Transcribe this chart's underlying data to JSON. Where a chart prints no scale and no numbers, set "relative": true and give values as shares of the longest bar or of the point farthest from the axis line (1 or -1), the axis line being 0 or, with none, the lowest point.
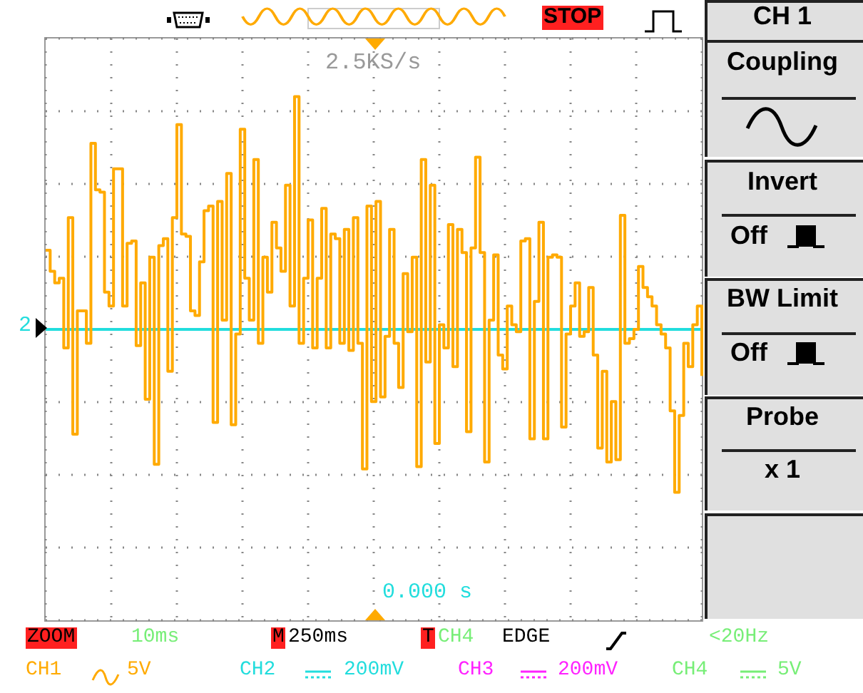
{
  "chart_data": {
    "type": "step",
    "relative": true,
    "tick_labels": false,
    "grid": true,
    "marker": "none",
    "line_style": "solid",
    "categories": [
      null,
      null,
      null,
      null,
      null,
      null,
      null,
      null,
      null,
      null,
      null,
      null,
      null,
      null,
      null,
      null,
      null,
      null,
      null,
      null,
      null,
      null,
      null,
      null,
      null,
      null,
      null,
      null,
      null,
      null,
      null,
      null,
      null,
      null,
      null,
      null,
      null,
      null,
      null,
      null,
      null,
      null,
      null,
      null,
      null,
      null,
      null,
      null,
      null,
      null,
      null,
      null,
      null,
      null,
      null,
      null,
      null,
      null,
      null,
      null,
      null,
      null,
      null,
      null,
      null,
      null,
      null,
      null,
      null,
      null,
      null,
      null,
      null,
      null,
      null,
      null,
      null,
      null,
      null,
      null,
      null,
      null,
      null,
      null,
      null,
      null,
      null,
      null,
      null,
      null,
      null,
      null,
      null,
      null,
      null,
      null,
      null,
      null,
      null,
      null,
      null,
      null,
      null,
      null,
      null,
      null,
      null,
      null,
      null,
      null,
      null,
      null,
      null,
      null,
      null,
      null,
      null,
      null,
      null,
      null,
      null,
      null,
      null,
      null,
      null,
      null,
      null,
      null,
      null,
      null,
      null,
      null,
      null,
      null,
      null,
      null,
      null,
      null,
      null,
      null,
      null,
      null,
      null,
      null,
      null,
      null
    ],
    "series": [
      {
        "color": "#ffaa00",
        "values": [
          0.34,
          0.25,
          0.2,
          0.22,
          -0.08,
          0.48,
          -0.45,
          0.08,
          0.08,
          -0.06,
          0.8,
          0.6,
          0.59,
          0.16,
          0.1,
          0.69,
          0.69,
          0.1,
          0.37,
          0.38,
          -0.07,
          0.2,
          -0.3,
          0.31,
          -0.58,
          0.36,
          0.39,
          -0.18,
          0.48,
          0.88,
          0.41,
          0.4,
          0.08,
          0.06,
          0.29,
          0.51,
          0.53,
          -0.4,
          0.55,
          0.04,
          0.67,
          -0.41,
          -0.02,
          0.86,
          0.22,
          0.04,
          0.73,
          -0.06,
          0.31,
          0.16,
          0.46,
          0.35,
          0.25,
          0.62,
          0.1,
          1.0,
          -0.06,
          0.22,
          0.47,
          -0.08,
          0.22,
          0.52,
          -0.08,
          0.41,
          0.39,
          -0.06,
          0.43,
          -0.09,
          0.48,
          -0.06,
          -0.6,
          0.53,
          -0.31,
          0.55,
          -0.29,
          -0.03,
          0.43,
          -0.06,
          -0.25,
          0.24,
          -0.01,
          0.31,
          -0.59,
          0.73,
          -0.14,
          0.62,
          -0.49,
          0.02,
          -0.08,
          0.45,
          -0.16,
          0.43,
          0.33,
          -0.44,
          0.35,
          0.74,
          0.33,
          -0.57,
          0.04,
          0.32,
          -0.11,
          -0.17,
          0.1,
          0.02,
          -0.01,
          0.38,
          0.39,
          -0.47,
          0.12,
          0.46,
          -0.47,
          0.31,
          0.32,
          0.31,
          -0.42,
          -0.02,
          0.1,
          0.2,
          -0.03,
          -0.01,
          0.18,
          -0.11,
          -0.51,
          -0.18,
          -0.57,
          -0.31,
          -0.56,
          0.49,
          -0.06,
          -0.04,
          0,
          0.27,
          0.18,
          0.14,
          0.1,
          0.02,
          -0.02,
          -0.08,
          -0.35,
          -0.7,
          -0.37,
          -0.06,
          -0.16,
          0.02,
          0.1,
          -0.2
        ]
      }
    ],
    "ref_lines": [
      {
        "axis": "y",
        "value": 0,
        "color": "#22dddd"
      }
    ],
    "annotations": [
      "2.5KS/s",
      "STOP",
      "CH 1",
      "Coupling",
      "Invert",
      "Off",
      "BW Limit",
      "Off",
      "Probe",
      "x 1",
      "0.000 s",
      "ZOOM",
      "10ms",
      "M",
      "250ms",
      "T",
      "CH4",
      "EDGE",
      "<20Hz",
      "CH1",
      "5V",
      "CH2",
      "200mV",
      "CH3",
      "200mV",
      "CH4",
      "5V",
      "2"
    ]
  }
}
